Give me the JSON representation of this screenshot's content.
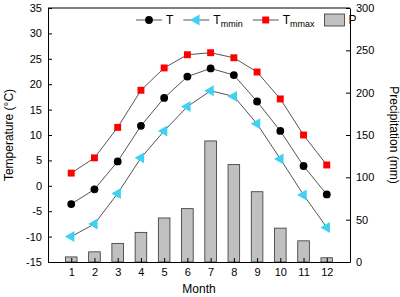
{
  "chart_data": {
    "type": "line",
    "x_label": "Month",
    "y_label": "Temperature (°C)",
    "y2_label": "Precipitation (mm)",
    "x": [
      1,
      2,
      3,
      4,
      5,
      6,
      7,
      8,
      9,
      10,
      11,
      12
    ],
    "xlim": [
      0,
      13
    ],
    "xticks": [
      1,
      2,
      3,
      4,
      5,
      6,
      7,
      8,
      9,
      10,
      11,
      12
    ],
    "ylim": [
      -15,
      35
    ],
    "yticks": [
      -15,
      -10,
      -5,
      0,
      5,
      10,
      15,
      20,
      25,
      30,
      35
    ],
    "y2lim": [
      0,
      300
    ],
    "y2ticks": [
      0,
      50,
      100,
      150,
      200,
      250,
      300
    ],
    "legend": "top",
    "series": [
      {
        "name": "T",
        "type": "line",
        "color": "#000000",
        "marker": "circle",
        "line_style": "solid",
        "values": [
          -3.6,
          -0.7,
          4.8,
          11.8,
          17.3,
          21.5,
          23.1,
          21.8,
          16.6,
          10.8,
          3.9,
          -1.7
        ]
      },
      {
        "name": "Tmmin",
        "type": "line",
        "color": "#3fd0f2",
        "marker": "triangle-left",
        "line_style": "solid",
        "values": [
          -10.0,
          -7.5,
          -1.5,
          5.5,
          10.8,
          15.6,
          18.7,
          17.6,
          12.2,
          5.3,
          -1.8,
          -8.2
        ]
      },
      {
        "name": "Tmmax",
        "type": "line",
        "color": "#ff0000",
        "marker": "square",
        "line_style": "solid",
        "values": [
          2.5,
          5.5,
          11.5,
          18.8,
          23.2,
          25.8,
          26.2,
          25.2,
          22.4,
          17.1,
          10.0,
          4.1
        ]
      },
      {
        "name": "P",
        "type": "bar",
        "color": "#c0c0c0",
        "axis": "y2",
        "values": [
          6,
          12,
          22,
          35,
          52,
          63,
          143,
          115,
          83,
          40,
          25,
          5
        ]
      }
    ]
  }
}
